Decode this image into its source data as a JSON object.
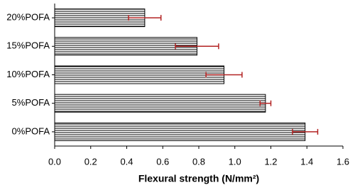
{
  "chart_data": {
    "type": "hbar",
    "categories": [
      "20%POFA",
      "15%POFA",
      "10%POFA",
      "5%POFA",
      "0%POFA"
    ],
    "values": [
      0.5,
      0.79,
      0.94,
      1.17,
      1.39
    ],
    "errors": [
      0.09,
      0.12,
      0.1,
      0.03,
      0.07
    ],
    "color": "#000000",
    "error_color": "#b22222",
    "xlabel": "Flexural strength (N/mm²)",
    "xlim": [
      0,
      1.6
    ],
    "xticks": [
      {
        "value": 0,
        "label": "0.0"
      },
      0.2,
      0.4,
      0.6,
      0.8,
      {
        "value": 1,
        "label": "1.0"
      },
      1.2,
      1.4,
      1.6
    ]
  }
}
